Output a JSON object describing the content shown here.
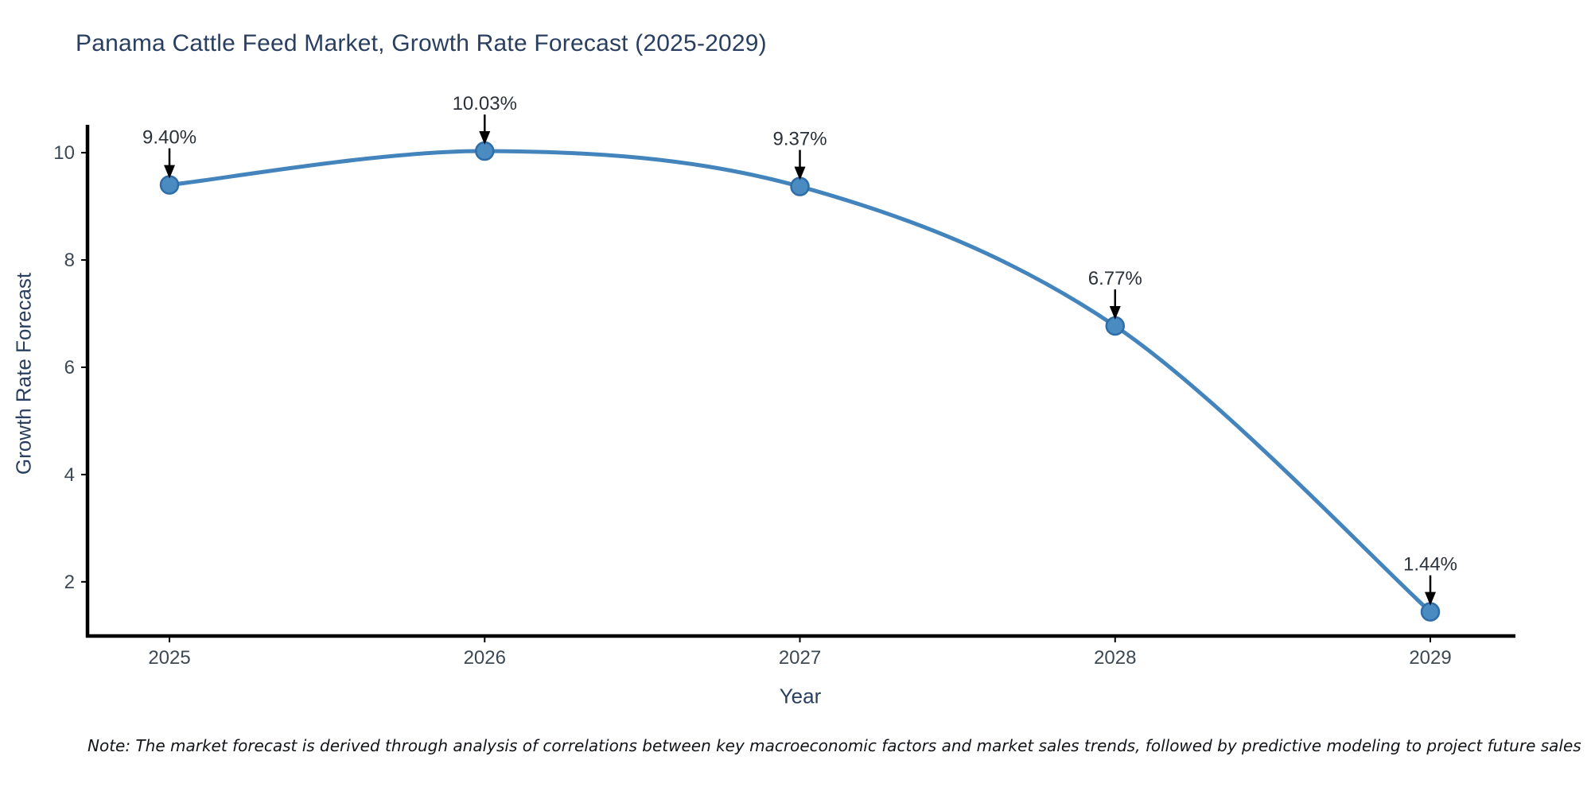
{
  "page": {
    "background": "#ffffff"
  },
  "chart": {
    "title": "Panama Cattle Feed Market, Growth Rate Forecast (2025-2029)",
    "xlabel": "Year",
    "ylabel": "Growth Rate Forecast",
    "note": "Note: The market forecast is derived through analysis of correlations between key macroeconomic factors and market sales trends, followed by predictive modeling to project future sales"
  },
  "chart_data": {
    "type": "line",
    "title": "Panama Cattle Feed Market, Growth Rate Forecast (2025-2029)",
    "xlabel": "Year",
    "ylabel": "Growth Rate Forecast",
    "series": [
      {
        "name": "Growth Rate Forecast",
        "x": [
          2025,
          2026,
          2027,
          2028,
          2029
        ],
        "y": [
          9.4,
          10.03,
          9.37,
          6.77,
          1.44
        ],
        "point_labels": [
          "9.40%",
          "10.03%",
          "9.37%",
          "6.77%",
          "1.44%"
        ]
      }
    ],
    "xticks": [
      "2025",
      "2026",
      "2027",
      "2028",
      "2029"
    ],
    "xtick_values": [
      2025,
      2026,
      2027,
      2028,
      2029
    ],
    "yticks": [
      "2",
      "4",
      "6",
      "8",
      "10"
    ],
    "ytick_values": [
      2,
      4,
      6,
      8,
      10
    ],
    "xlim": [
      2024.74,
      2029.27
    ],
    "ylim": [
      0.99,
      10.52
    ],
    "grid": false,
    "legend": "none",
    "line_style": "smooth",
    "annotation_arrows": true,
    "colors": {
      "line": "#4384bd",
      "marker_fill": "#4a8bc2",
      "marker_edge": "#2f6da8",
      "axis_spine": "#000000",
      "tick_text": "#3d4855",
      "annotation_text": "#2b3138",
      "arrow": "#000000",
      "title_text": "#2a3f5f"
    }
  }
}
